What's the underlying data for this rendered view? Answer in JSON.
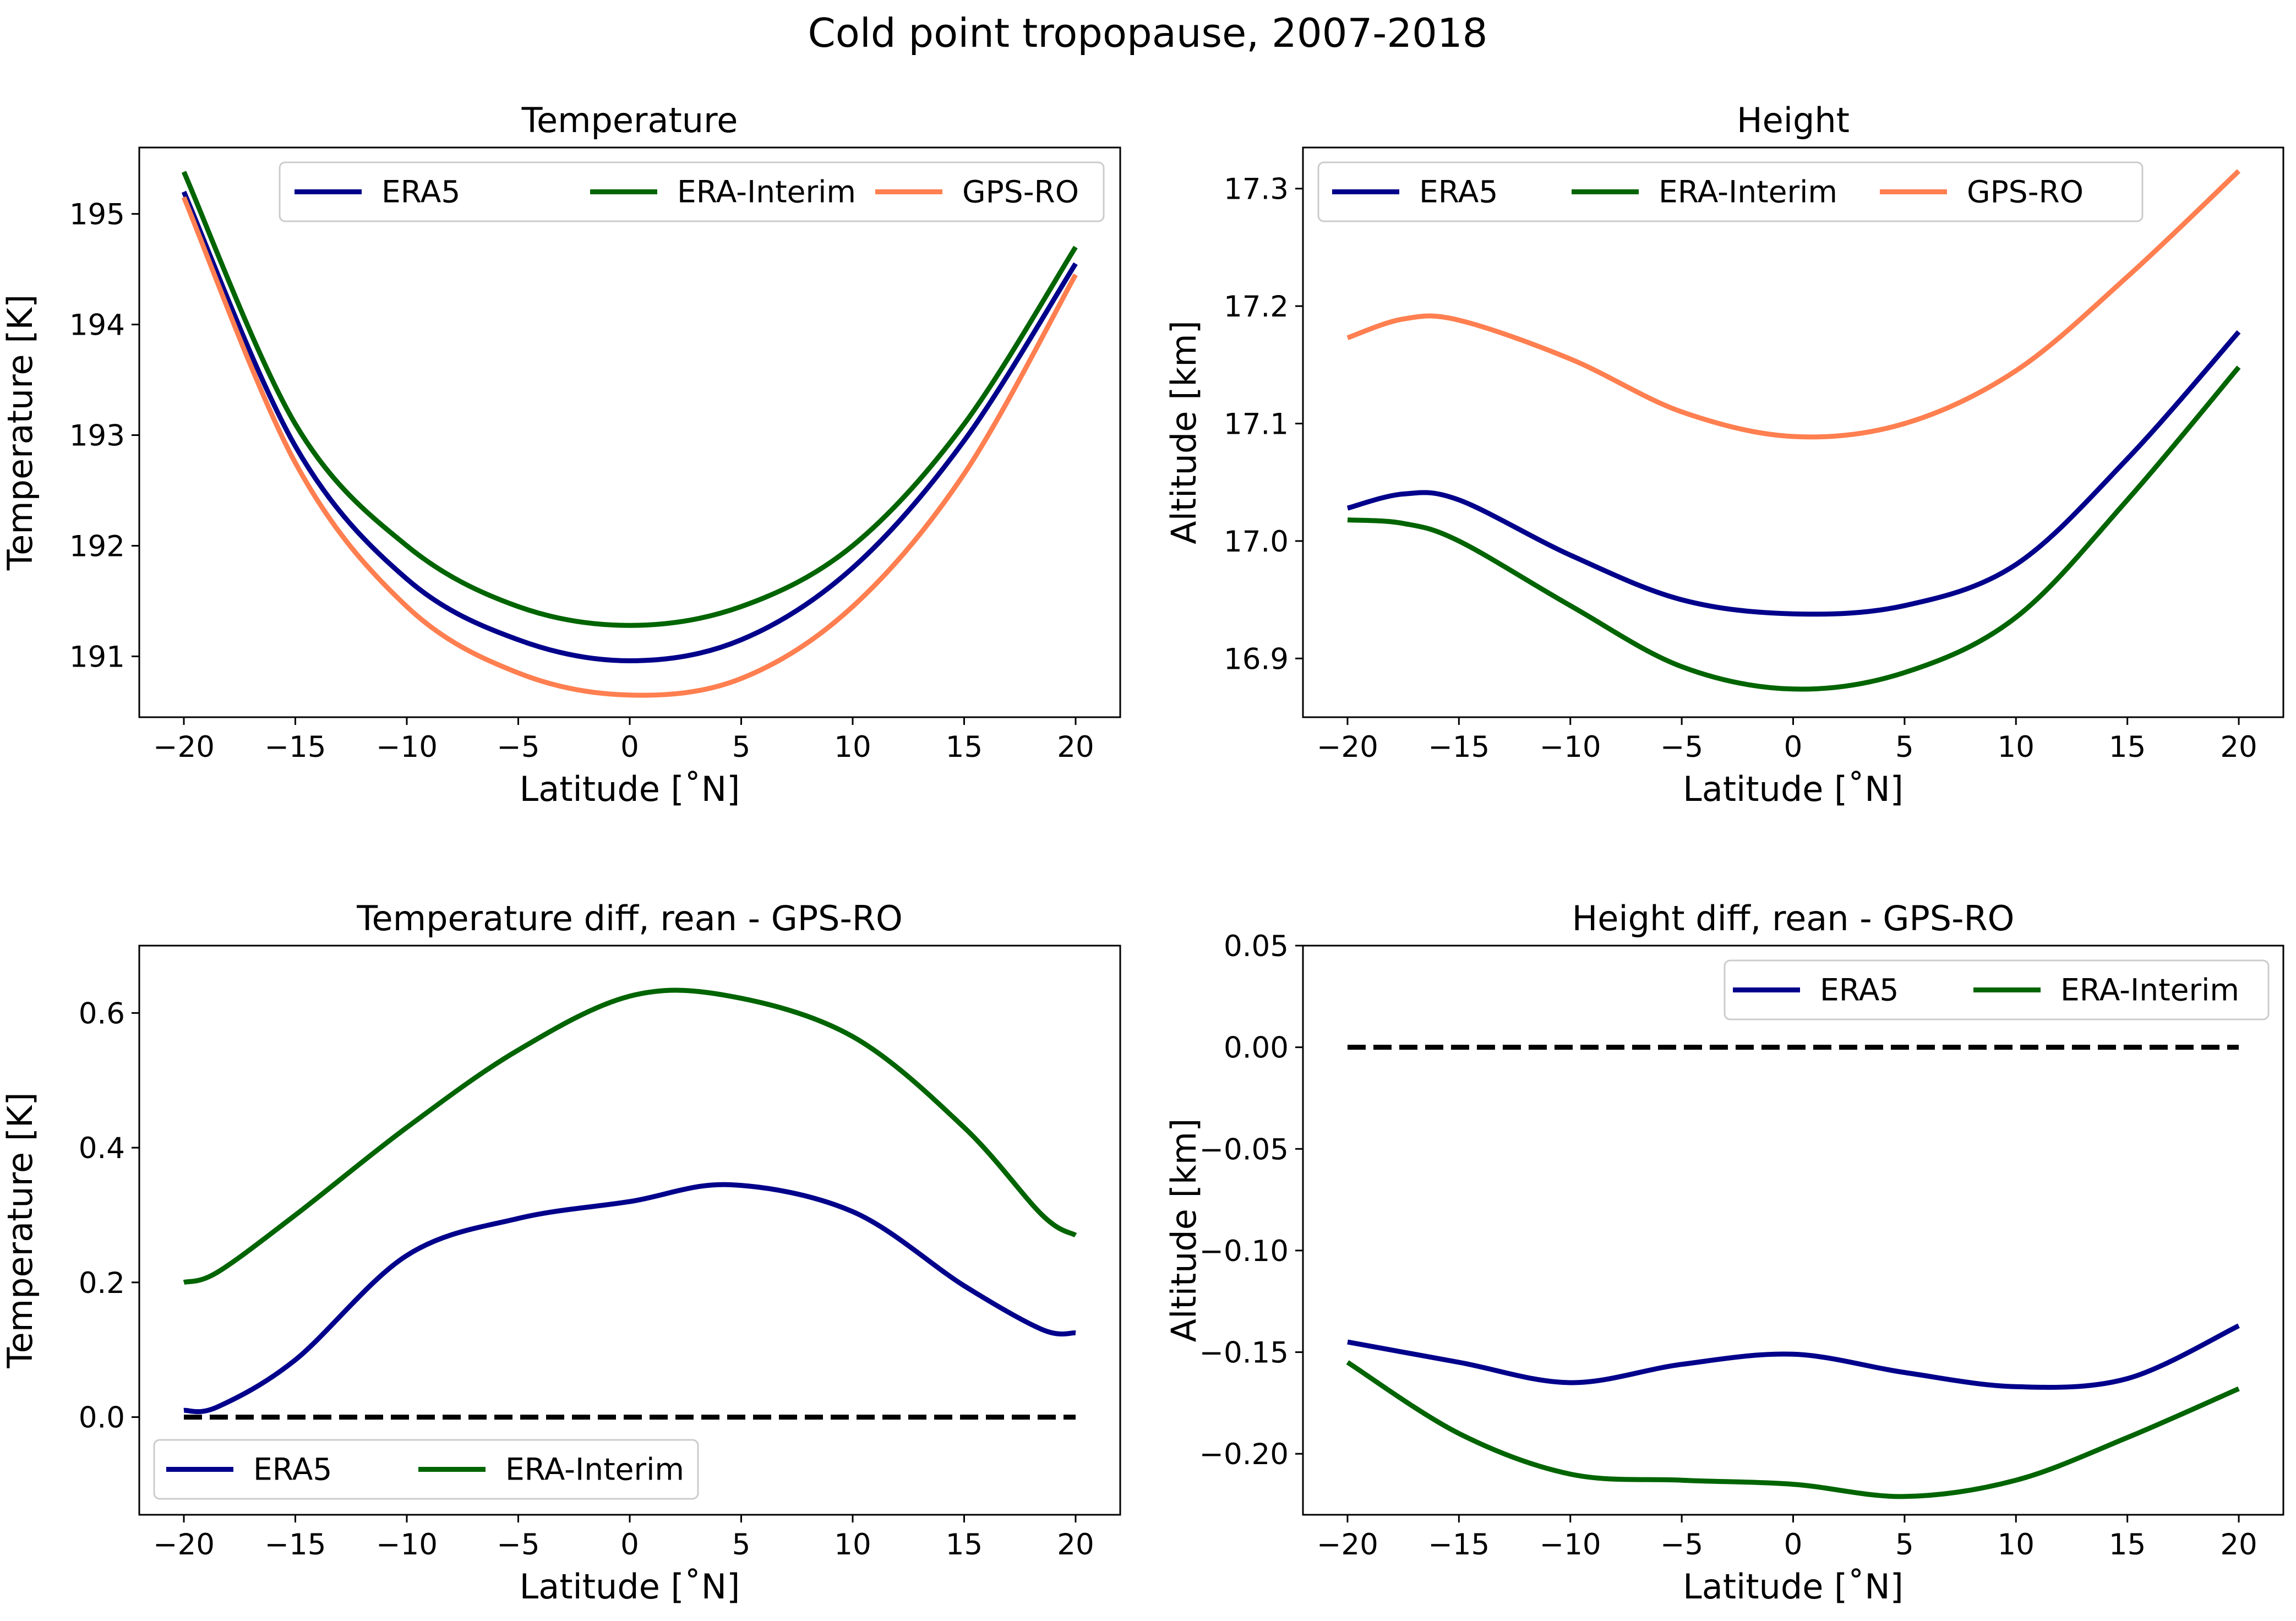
{
  "figure": {
    "title": "Cold point tropopause, 2007-2018"
  },
  "colors": {
    "ERA5": "#00008b",
    "ERA-Interim": "#006400",
    "GPS-RO": "#ff7f50",
    "zero_line": "#000000"
  },
  "chart_data": [
    {
      "type": "line",
      "title": "Temperature",
      "xlabel": "Latitude [˚N]",
      "ylabel": "Temperature [K]",
      "xlim": [
        -22,
        22
      ],
      "ylim": [
        190.45,
        195.6
      ],
      "xticks": [
        -20,
        -15,
        -10,
        -5,
        0,
        5,
        10,
        15,
        20
      ],
      "xtick_labels": [
        "−20",
        "−15",
        "−10",
        "−5",
        "0",
        "5",
        "10",
        "15",
        "20"
      ],
      "yticks": [
        191,
        192,
        193,
        194,
        195
      ],
      "ytick_labels": [
        "191",
        "192",
        "193",
        "194",
        "195"
      ],
      "legend": {
        "placement": "top-right",
        "columns": 3
      },
      "grid": false,
      "x": [
        -20,
        -15,
        -10,
        -5,
        0,
        5,
        10,
        15,
        20
      ],
      "series": [
        {
          "name": "ERA5",
          "values": [
            195.2,
            192.9,
            191.7,
            191.15,
            190.96,
            191.15,
            191.8,
            192.95,
            194.55
          ]
        },
        {
          "name": "ERA-Interim",
          "values": [
            195.38,
            193.1,
            192.0,
            191.45,
            191.28,
            191.45,
            192.0,
            193.1,
            194.7
          ]
        },
        {
          "name": "GPS-RO",
          "values": [
            195.15,
            192.75,
            191.45,
            190.85,
            190.65,
            190.8,
            191.45,
            192.65,
            194.45
          ]
        }
      ]
    },
    {
      "type": "line",
      "title": "Height",
      "xlabel": "Latitude [˚N]",
      "ylabel": "Altitude [km]",
      "xlim": [
        -22,
        22
      ],
      "ylim": [
        16.85,
        17.335
      ],
      "xticks": [
        -20,
        -15,
        -10,
        -5,
        0,
        5,
        10,
        15,
        20
      ],
      "xtick_labels": [
        "−20",
        "−15",
        "−10",
        "−5",
        "0",
        "5",
        "10",
        "15",
        "20"
      ],
      "yticks": [
        16.9,
        17.0,
        17.1,
        17.2,
        17.3
      ],
      "ytick_labels": [
        "16.9",
        "17.0",
        "17.1",
        "17.2",
        "17.3"
      ],
      "legend": {
        "placement": "top-left",
        "columns": 3
      },
      "grid": false,
      "x": [
        -20,
        -17.5,
        -15,
        -10,
        -5,
        0,
        5,
        10,
        15,
        20
      ],
      "series": [
        {
          "name": "ERA5",
          "values": [
            17.028,
            17.04,
            17.035,
            16.988,
            16.95,
            16.938,
            16.945,
            16.98,
            17.07,
            17.178
          ]
        },
        {
          "name": "ERA-Interim",
          "values": [
            17.018,
            17.015,
            17.0,
            16.945,
            16.893,
            16.874,
            16.888,
            16.935,
            17.035,
            17.148
          ]
        },
        {
          "name": "GPS-RO",
          "values": [
            17.173,
            17.189,
            17.188,
            17.155,
            17.11,
            17.089,
            17.1,
            17.145,
            17.225,
            17.315
          ]
        }
      ]
    },
    {
      "type": "line",
      "title": "Temperature diff, rean - GPS-RO",
      "xlabel": "Latitude [˚N]",
      "ylabel": "Temperature [K]",
      "xlim": [
        -22,
        22
      ],
      "ylim": [
        -0.145,
        0.7
      ],
      "xticks": [
        -20,
        -15,
        -10,
        -5,
        0,
        5,
        10,
        15,
        20
      ],
      "xtick_labels": [
        "−20",
        "−15",
        "−10",
        "−5",
        "0",
        "5",
        "10",
        "15",
        "20"
      ],
      "yticks": [
        0.0,
        0.2,
        0.4,
        0.6
      ],
      "ytick_labels": [
        "0.0",
        "0.2",
        "0.4",
        "0.6"
      ],
      "legend": {
        "placement": "bottom-left",
        "columns": 2
      },
      "grid": false,
      "x": [
        -20,
        -18.5,
        -15,
        -10,
        -5,
        0,
        4.5,
        10,
        15,
        18.5,
        20
      ],
      "series": [
        {
          "name": "ERA5",
          "values": [
            0.01,
            0.015,
            0.085,
            0.24,
            0.295,
            0.32,
            0.345,
            0.305,
            0.195,
            0.13,
            0.125
          ]
        },
        {
          "name": "ERA-Interim",
          "values": [
            0.2,
            0.215,
            0.3,
            0.43,
            0.545,
            0.625,
            0.625,
            0.565,
            0.43,
            0.3,
            0.27
          ]
        }
      ],
      "reference_line": {
        "y": 0.0,
        "style": "dashed"
      }
    },
    {
      "type": "line",
      "title": "Height diff, rean - GPS-RO",
      "xlabel": "Latitude [˚N]",
      "ylabel": "Altitude [km]",
      "xlim": [
        -22,
        22
      ],
      "ylim": [
        -0.23,
        0.05
      ],
      "xticks": [
        -20,
        -15,
        -10,
        -5,
        0,
        5,
        10,
        15,
        20
      ],
      "xtick_labels": [
        "−20",
        "−15",
        "−10",
        "−5",
        "0",
        "5",
        "10",
        "15",
        "20"
      ],
      "yticks": [
        -0.2,
        -0.15,
        -0.1,
        -0.05,
        0.0,
        0.05
      ],
      "ytick_labels": [
        "−0.20",
        "−0.15",
        "−0.10",
        "−0.05",
        "0.00",
        "0.05"
      ],
      "legend": {
        "placement": "top-right",
        "columns": 2
      },
      "grid": false,
      "x": [
        -20,
        -15,
        -10,
        -5,
        0,
        5,
        10,
        15,
        20
      ],
      "series": [
        {
          "name": "ERA5",
          "values": [
            -0.145,
            -0.155,
            -0.165,
            -0.156,
            -0.151,
            -0.16,
            -0.167,
            -0.163,
            -0.137
          ]
        },
        {
          "name": "ERA-Interim",
          "values": [
            -0.155,
            -0.19,
            -0.21,
            -0.213,
            -0.215,
            -0.221,
            -0.213,
            -0.192,
            -0.168
          ]
        }
      ],
      "reference_line": {
        "y": 0.0,
        "style": "dashed"
      }
    }
  ]
}
